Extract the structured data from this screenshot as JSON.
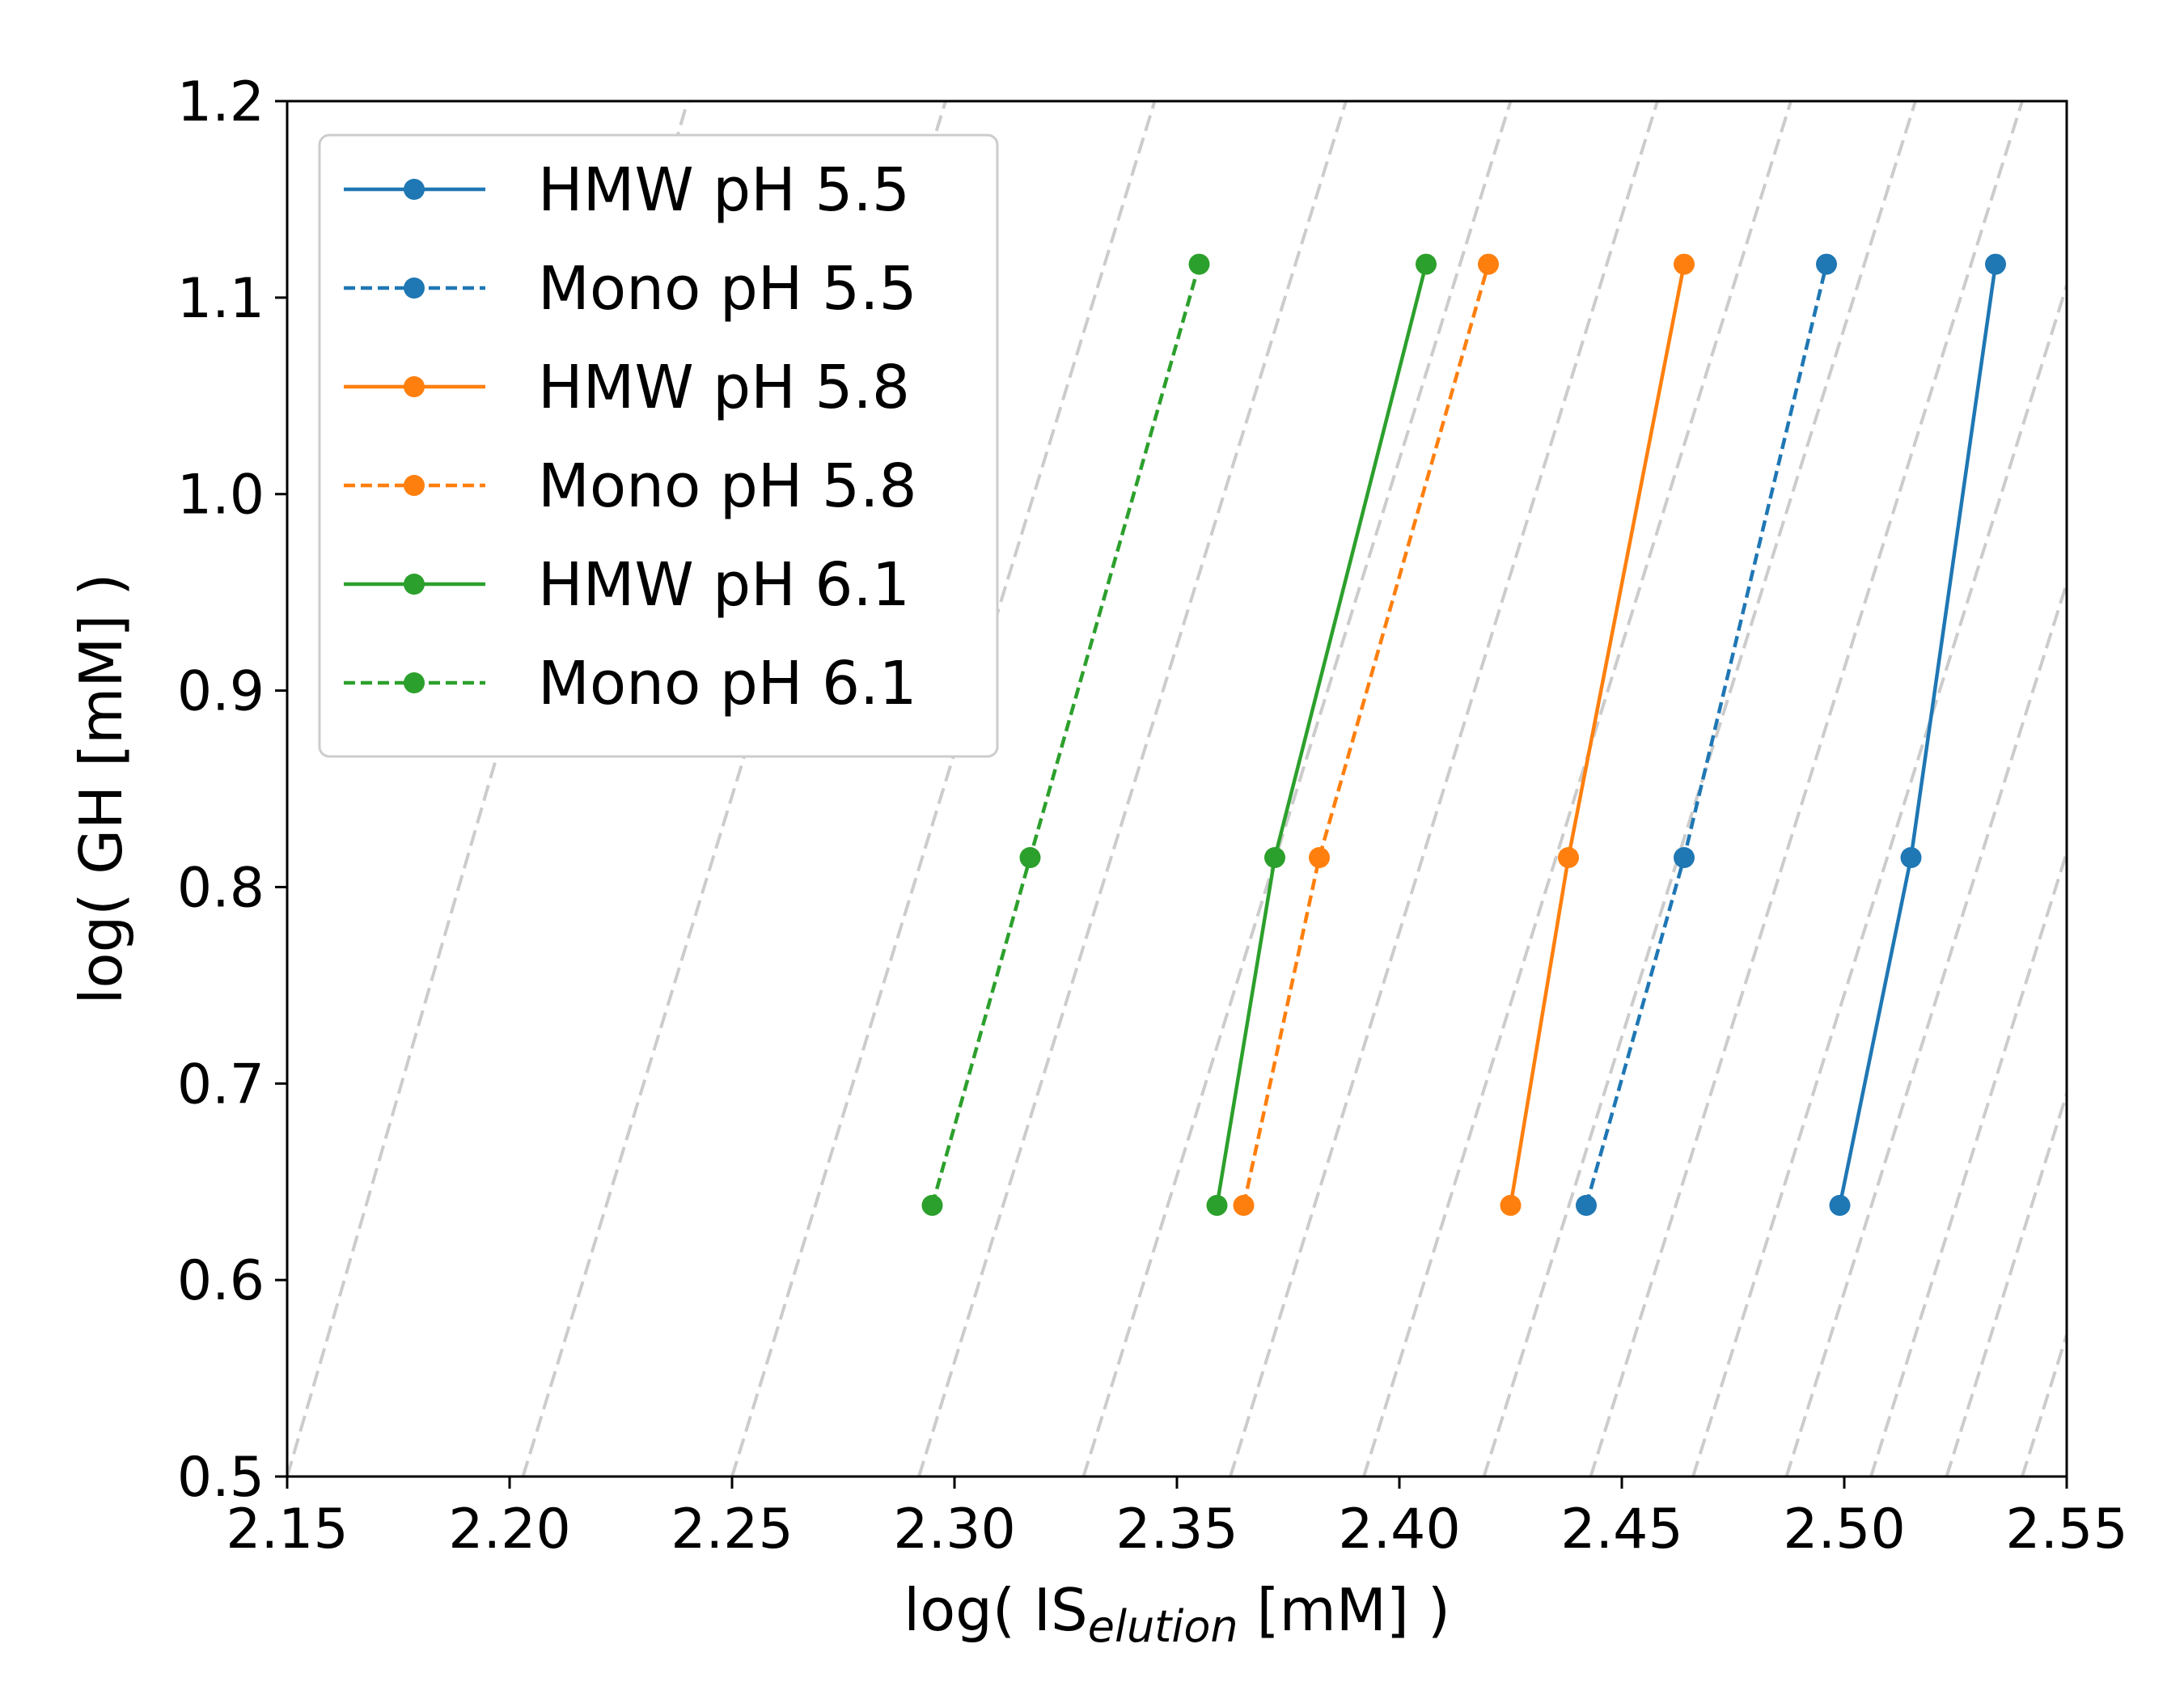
{
  "chart_data": {
    "type": "line",
    "xlabel": {
      "prefix": "log( IS",
      "subscript": "elution",
      "suffix": " [mM] )"
    },
    "ylabel": "log( GH [mM] )",
    "xlim": [
      2.15,
      2.55
    ],
    "ylim": [
      0.5,
      1.2
    ],
    "xticks": [
      "2.15",
      "2.20",
      "2.25",
      "2.30",
      "2.35",
      "2.40",
      "2.45",
      "2.50",
      "2.55"
    ],
    "yticks": [
      "0.5",
      "0.6",
      "0.7",
      "0.8",
      "0.9",
      "1.0",
      "1.1",
      "1.2"
    ],
    "grid": false,
    "legend_position": "upper-left",
    "series": [
      {
        "name": "HMW pH 5.5",
        "color": "#1f77b4",
        "style": "solid",
        "points": [
          [
            2.499,
            0.638
          ],
          [
            2.515,
            0.815
          ],
          [
            2.534,
            1.117
          ]
        ]
      },
      {
        "name": "Mono pH 5.5",
        "color": "#1f77b4",
        "style": "dashed",
        "points": [
          [
            2.442,
            0.638
          ],
          [
            2.464,
            0.815
          ],
          [
            2.496,
            1.117
          ]
        ]
      },
      {
        "name": "HMW pH 5.8",
        "color": "#ff7f0e",
        "style": "solid",
        "points": [
          [
            2.425,
            0.638
          ],
          [
            2.438,
            0.815
          ],
          [
            2.464,
            1.117
          ]
        ]
      },
      {
        "name": "Mono pH 5.8",
        "color": "#ff7f0e",
        "style": "dashed",
        "points": [
          [
            2.365,
            0.638
          ],
          [
            2.382,
            0.815
          ],
          [
            2.42,
            1.117
          ]
        ]
      },
      {
        "name": "HMW pH 6.1",
        "color": "#2ca02c",
        "style": "solid",
        "points": [
          [
            2.359,
            0.638
          ],
          [
            2.372,
            0.815
          ],
          [
            2.406,
            1.117
          ]
        ]
      },
      {
        "name": "Mono pH 6.1",
        "color": "#2ca02c",
        "style": "dashed",
        "points": [
          [
            2.295,
            0.638
          ],
          [
            2.317,
            0.815
          ],
          [
            2.355,
            1.117
          ]
        ]
      }
    ],
    "reference_lines": {
      "color": "#cccccc",
      "style": "dashed",
      "lines": [
        [
          [
            2.15,
            0.5
          ],
          [
            2.24,
            1.2
          ]
        ],
        [
          [
            2.203,
            0.5
          ],
          [
            2.298,
            1.2
          ]
        ],
        [
          [
            2.25,
            0.5
          ],
          [
            2.345,
            1.2
          ]
        ],
        [
          [
            2.292,
            0.5
          ],
          [
            2.388,
            1.2
          ]
        ],
        [
          [
            2.329,
            0.5
          ],
          [
            2.425,
            1.2
          ]
        ],
        [
          [
            2.362,
            0.5
          ],
          [
            2.458,
            1.2
          ]
        ],
        [
          [
            2.392,
            0.5
          ],
          [
            2.488,
            1.2
          ]
        ],
        [
          [
            2.419,
            0.5
          ],
          [
            2.516,
            1.2
          ]
        ],
        [
          [
            2.443,
            0.5
          ],
          [
            2.54,
            1.2
          ]
        ],
        [
          [
            2.466,
            0.5
          ],
          [
            2.563,
            1.2
          ]
        ],
        [
          [
            2.487,
            0.5
          ],
          [
            2.584,
            1.2
          ]
        ],
        [
          [
            2.506,
            0.5
          ],
          [
            2.603,
            1.2
          ]
        ],
        [
          [
            2.523,
            0.5
          ],
          [
            2.62,
            1.2
          ]
        ],
        [
          [
            2.54,
            0.5
          ],
          [
            2.637,
            1.2
          ]
        ]
      ]
    }
  }
}
